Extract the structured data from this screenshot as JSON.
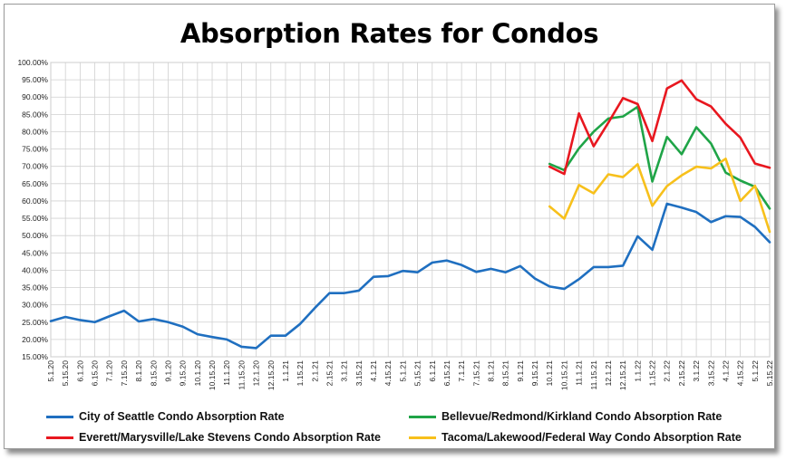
{
  "chart_data": {
    "type": "line",
    "title": "Absorption Rates for Condos",
    "xlabel": "",
    "ylabel": "",
    "ylim": [
      15,
      100
    ],
    "y_tick_format": "percent_2dp",
    "y_ticks": [
      15,
      20,
      25,
      30,
      35,
      40,
      45,
      50,
      55,
      60,
      65,
      70,
      75,
      80,
      85,
      90,
      95,
      100
    ],
    "grid": true,
    "legend_position": "bottom",
    "categories": [
      "5.1.20",
      "5.15.20",
      "6.1.20",
      "6.15.20",
      "7.1.20",
      "7.15.20",
      "8.1.20",
      "8.15.20",
      "9.1.20",
      "9.15.20",
      "10.1.20",
      "10.15.20",
      "11.1.20",
      "11.15.20",
      "12.1.20",
      "12.15.20",
      "1.1.21",
      "1.15.21",
      "2.1.21",
      "2.15.21",
      "3.1.21",
      "3.15.21",
      "4.1.21",
      "4.15.21",
      "5.1.21",
      "5.15.21",
      "6.1.21",
      "6.15.21",
      "7.1.21",
      "7.15.21",
      "8.1.21",
      "8.15.21",
      "9.1.21",
      "9.15.21",
      "10.1.21",
      "10.15.21",
      "11.1.21",
      "11.15.21",
      "12.1.21",
      "12.15.21",
      "1.1.22",
      "1.15.22",
      "2.1.22",
      "2.15.22",
      "3.1.22",
      "3.15.22",
      "4.1.22",
      "4.15.22",
      "5.1.22",
      "5.15.22"
    ],
    "series": [
      {
        "name": "City of Seattle Condo Absorption Rate",
        "color": "#1f6fc0",
        "values": [
          25.3,
          26.5,
          25.6,
          25.0,
          26.7,
          28.3,
          25.2,
          25.9,
          25.0,
          23.7,
          21.5,
          20.7,
          20.0,
          17.9,
          17.5,
          21.1,
          21.1,
          24.5,
          29.1,
          33.4,
          33.4,
          34.1,
          38.1,
          38.3,
          39.8,
          39.4,
          42.2,
          42.8,
          41.5,
          39.5,
          40.4,
          39.4,
          41.2,
          37.6,
          35.3,
          34.6,
          37.4,
          40.9,
          40.9,
          41.3,
          49.8,
          45.9,
          59.2,
          58.1,
          56.8,
          53.9,
          55.6,
          55.4,
          52.5,
          48.1
        ]
      },
      {
        "name": "Bellevue/Redmond/Kirkland Condo Absorption Rate",
        "color": "#1fa447",
        "values": [
          null,
          null,
          null,
          null,
          null,
          null,
          null,
          null,
          null,
          null,
          null,
          null,
          null,
          null,
          null,
          null,
          null,
          null,
          null,
          null,
          null,
          null,
          null,
          null,
          null,
          null,
          null,
          null,
          null,
          null,
          null,
          null,
          null,
          null,
          70.7,
          68.9,
          75.2,
          80.0,
          83.8,
          84.4,
          87.2,
          65.6,
          78.5,
          73.5,
          81.3,
          76.6,
          68.2,
          65.9,
          64.1,
          57.8
        ]
      },
      {
        "name": "Everett/Marysville/Lake Stevens Condo Absorption Rate",
        "color": "#e8171f",
        "values": [
          null,
          null,
          null,
          null,
          null,
          null,
          null,
          null,
          null,
          null,
          null,
          null,
          null,
          null,
          null,
          null,
          null,
          null,
          null,
          null,
          null,
          null,
          null,
          null,
          null,
          null,
          null,
          null,
          null,
          null,
          null,
          null,
          null,
          null,
          69.9,
          67.8,
          85.3,
          75.8,
          82.6,
          89.7,
          88.0,
          77.3,
          92.5,
          94.8,
          89.4,
          87.3,
          82.3,
          78.3,
          70.8,
          69.6
        ]
      },
      {
        "name": "Tacoma/Lakewood/Federal Way Condo Absorption Rate",
        "color": "#f7c01b",
        "values": [
          null,
          null,
          null,
          null,
          null,
          null,
          null,
          null,
          null,
          null,
          null,
          null,
          null,
          null,
          null,
          null,
          null,
          null,
          null,
          null,
          null,
          null,
          null,
          null,
          null,
          null,
          null,
          null,
          null,
          null,
          null,
          null,
          null,
          null,
          58.4,
          54.9,
          64.6,
          62.2,
          67.7,
          66.9,
          70.6,
          58.6,
          64.3,
          67.4,
          69.9,
          69.4,
          72.2,
          60.0,
          64.4,
          51.1
        ]
      }
    ]
  }
}
